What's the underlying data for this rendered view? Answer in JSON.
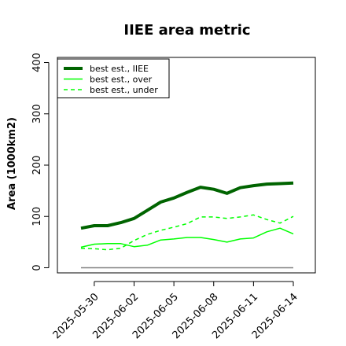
{
  "chart_data": {
    "type": "line",
    "title": "IIEE area metric",
    "xlabel": "",
    "ylabel": "Area (1000km2)",
    "ylim": [
      -10,
      410
    ],
    "x_tick_labels": [
      "2025-05-30",
      "2025-06-02",
      "2025-06-05",
      "2025-06-08",
      "2025-06-11",
      "2025-06-14"
    ],
    "y_ticks": [
      0,
      100,
      200,
      300,
      400
    ],
    "legend_position": "top-left",
    "x": [
      "2025-05-29",
      "2025-05-30",
      "2025-05-31",
      "2025-06-01",
      "2025-06-02",
      "2025-06-03",
      "2025-06-04",
      "2025-06-05",
      "2025-06-06",
      "2025-06-07",
      "2025-06-08",
      "2025-06-09",
      "2025-06-10",
      "2025-06-11",
      "2025-06-12",
      "2025-06-13",
      "2025-06-14"
    ],
    "series": [
      {
        "name": "best est., IIEE",
        "color": "#006400",
        "dash": "solid",
        "width": 4,
        "values": [
          77,
          82,
          82,
          88,
          96,
          112,
          128,
          136,
          147,
          157,
          153,
          145,
          156,
          160,
          163,
          164,
          165
        ]
      },
      {
        "name": "best est., over",
        "color": "#00ff00",
        "dash": "solid",
        "width": 1.5,
        "values": [
          40,
          46,
          47,
          47,
          41,
          44,
          54,
          56,
          59,
          59,
          55,
          50,
          56,
          58,
          70,
          77,
          66
        ]
      },
      {
        "name": "best est., under",
        "color": "#00ff00",
        "dash": "dashed",
        "width": 1.5,
        "values": [
          38,
          37,
          35,
          38,
          53,
          65,
          73,
          79,
          86,
          99,
          99,
          96,
          99,
          103,
          94,
          87,
          100
        ]
      },
      {
        "name": "",
        "color": "#808080",
        "dash": "solid",
        "width": 1.5,
        "values": [
          0,
          0,
          0,
          0,
          0,
          0,
          0,
          0,
          0,
          0,
          0,
          0,
          0,
          0,
          0,
          0,
          0
        ]
      }
    ]
  }
}
